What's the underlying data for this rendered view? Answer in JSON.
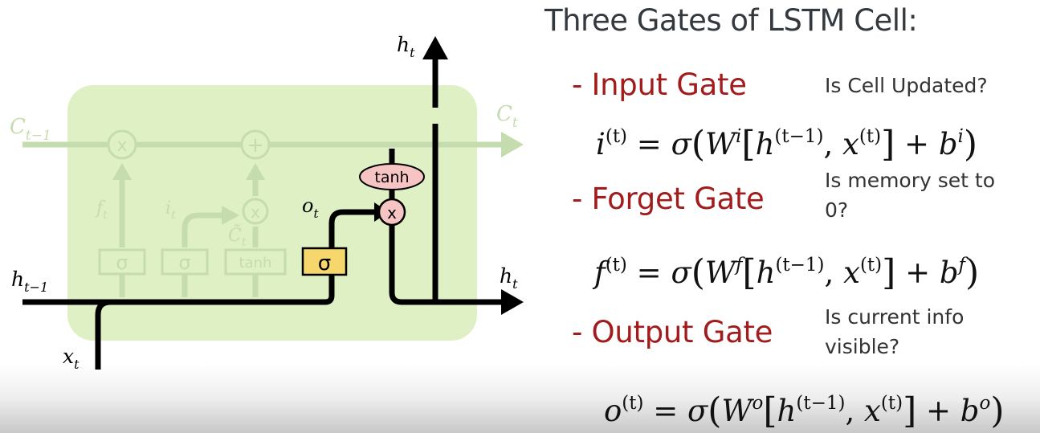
{
  "title": "Three Gates of LSTM Cell:",
  "diagram": {
    "input_cell": "C",
    "input_cell_sub": "t−1",
    "output_cell": "C",
    "output_cell_sub": "t",
    "mult_symbol": "×",
    "plus_symbol": "+",
    "forget_label": "f",
    "forget_sub": "t",
    "input_label": "i",
    "input_sub": "t",
    "candidate_label": "C̃",
    "candidate_sub": "t",
    "output_gate_label": "o",
    "output_gate_sub": "t",
    "hidden_prev": "h",
    "hidden_prev_sub": "t−1",
    "hidden_out_top": "h",
    "hidden_out_top_sub": "t",
    "hidden_out_right": "h",
    "hidden_out_right_sub": "t",
    "input_x": "x",
    "input_x_sub": "t",
    "sigma": "σ",
    "tanh": "tanh",
    "x_mark": "x"
  },
  "gates": [
    {
      "name": "- Input Gate",
      "question": "Is Cell Updated?",
      "lhs": "i",
      "sup_var": "i"
    },
    {
      "name": "- Forget Gate",
      "question": "Is memory set to 0?",
      "lhs": "f",
      "sup_var": "f"
    },
    {
      "name": "- Output Gate",
      "question": "Is current info visible?",
      "lhs": "o",
      "sup_var": "o"
    }
  ],
  "formula_parts": {
    "t": "(t)",
    "eq": " = ",
    "sigma": "σ",
    "W": "W",
    "h": "h",
    "tm1": "(t−1)",
    "comma": ", ",
    "x": "x",
    "plus": " + ",
    "b": "b",
    "lparen": "(",
    "rparen": ")",
    "lbrack": "[",
    "rbrack": "]"
  },
  "colors": {
    "cell_bg": "#dff0c4",
    "faded": "#c5dcae",
    "gate_box": "#f5d76e",
    "tanh_fill": "#f7c4c4",
    "gate_title": "#a11d1d"
  }
}
